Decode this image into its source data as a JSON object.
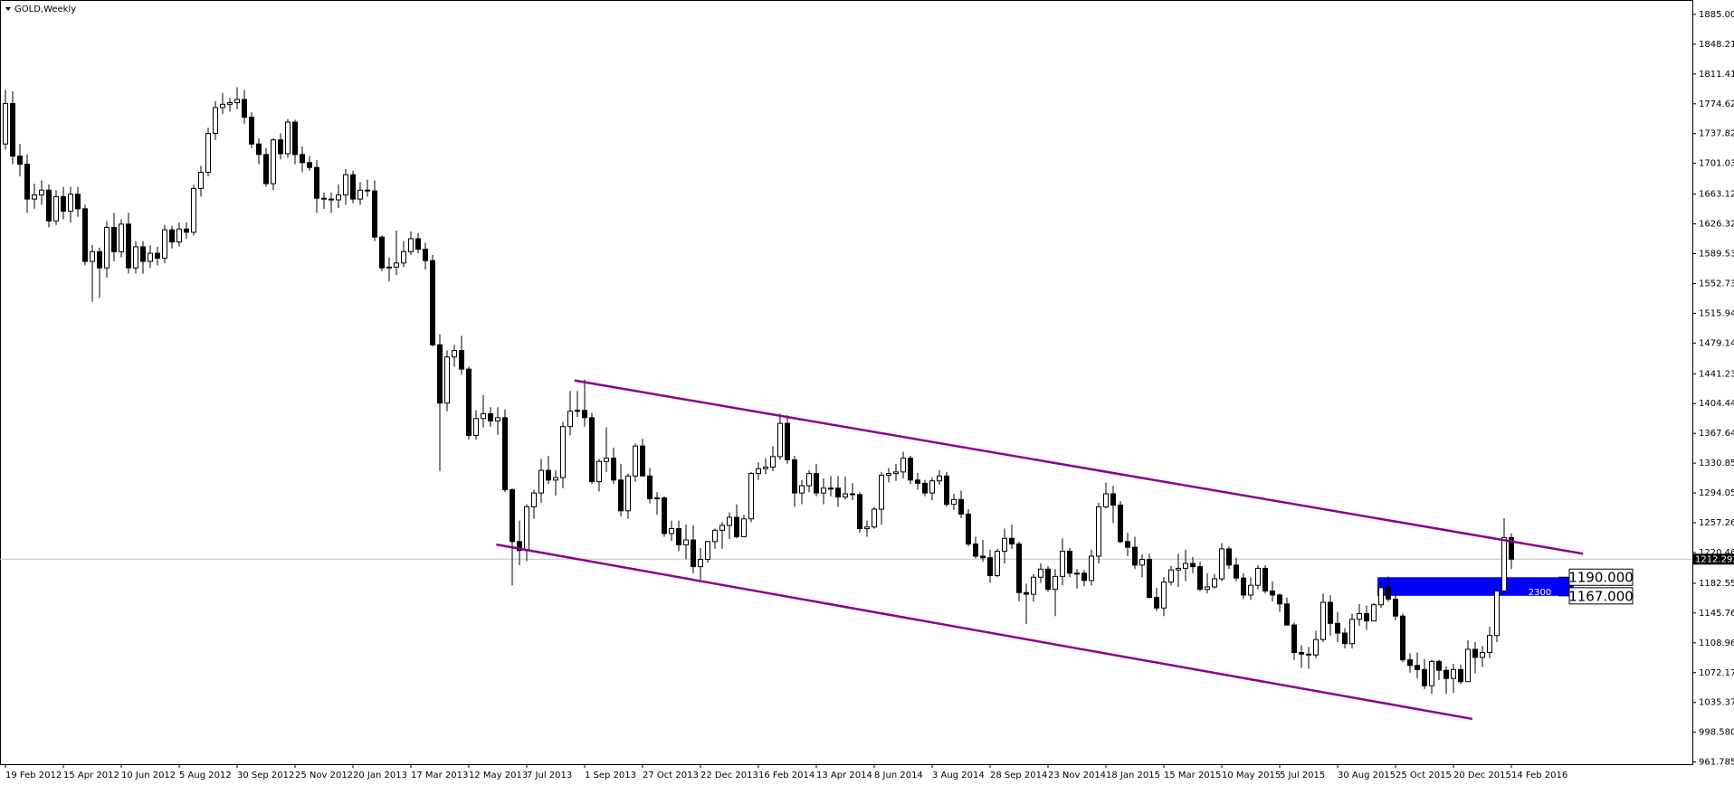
{
  "chart_data": {
    "type": "candlestick",
    "title": "GOLD,Weekly",
    "open": [
      1725,
      1775,
      1710,
      1700,
      1657,
      1662,
      1668,
      1630,
      1660,
      1642,
      1663,
      1645,
      1580,
      1592,
      1572,
      1622,
      1592,
      1626,
      1572,
      1598,
      1580,
      1590,
      1584,
      1619,
      1604,
      1620,
      1616,
      1670,
      1690,
      1738,
      1770,
      1774,
      1776,
      1780,
      1758,
      1725,
      1712,
      1676,
      1730,
      1713,
      1752,
      1712,
      1702,
      1696,
      1658,
      1657,
      1656,
      1662,
      1687,
      1657,
      1668,
      1667,
      1610,
      1572,
      1573,
      1578,
      1592,
      1608,
      1595,
      1581,
      1477,
      1405,
      1462,
      1470,
      1447,
      1365,
      1386,
      1392,
      1383,
      1387,
      1298,
      1234,
      1223,
      1277,
      1294,
      1322,
      1310,
      1313,
      1376,
      1395,
      1396,
      1387,
      1308,
      1333,
      1337,
      1310,
      1272,
      1315,
      1352,
      1315,
      1287,
      1288,
      1244,
      1250,
      1230,
      1236,
      1203,
      1212,
      1234,
      1248,
      1254,
      1264,
      1240,
      1262,
      1318,
      1324,
      1326,
      1339,
      1380,
      1335,
      1294,
      1303,
      1318,
      1294,
      1300,
      1300,
      1289,
      1293,
      1292,
      1250,
      1252,
      1274,
      1316,
      1318,
      1320,
      1337,
      1310,
      1306,
      1294,
      1309,
      1315,
      1280,
      1286,
      1268,
      1231,
      1216,
      1214,
      1192,
      1222,
      1238,
      1231,
      1171,
      1169,
      1190,
      1200,
      1175,
      1191,
      1222,
      1195,
      1195,
      1186,
      1216,
      1277,
      1293,
      1279,
      1234,
      1227,
      1205,
      1212,
      1165,
      1152,
      1184,
      1199,
      1201,
      1207,
      1203,
      1175,
      1178,
      1188,
      1225,
      1205,
      1189,
      1168,
      1180,
      1201,
      1173,
      1168,
      1157,
      1131,
      1097,
      1095,
      1094,
      1113,
      1159,
      1133,
      1121,
      1108,
      1138,
      1145,
      1136,
      1156,
      1177,
      1163,
      1142,
      1088,
      1081,
      1076,
      1056,
      1086,
      1075,
      1065,
      1076,
      1061,
      1101,
      1091,
      1097,
      1118,
      1173,
      1239
    ],
    "high": [
      1792,
      1790,
      1725,
      1712,
      1676,
      1680,
      1675,
      1668,
      1672,
      1672,
      1672,
      1650,
      1600,
      1597,
      1630,
      1640,
      1632,
      1640,
      1605,
      1605,
      1600,
      1598,
      1625,
      1624,
      1628,
      1628,
      1675,
      1698,
      1745,
      1778,
      1788,
      1782,
      1795,
      1792,
      1764,
      1732,
      1720,
      1732,
      1738,
      1756,
      1755,
      1722,
      1710,
      1705,
      1665,
      1665,
      1675,
      1694,
      1692,
      1678,
      1681,
      1680,
      1612,
      1585,
      1618,
      1605,
      1617,
      1615,
      1603,
      1588,
      1490,
      1470,
      1477,
      1488,
      1450,
      1396,
      1415,
      1400,
      1400,
      1397,
      1300,
      1260,
      1280,
      1298,
      1336,
      1340,
      1322,
      1382,
      1420,
      1420,
      1434,
      1393,
      1336,
      1375,
      1350,
      1330,
      1318,
      1355,
      1361,
      1325,
      1295,
      1290,
      1260,
      1260,
      1255,
      1254,
      1226,
      1235,
      1250,
      1258,
      1270,
      1280,
      1267,
      1320,
      1332,
      1337,
      1352,
      1392,
      1390,
      1340,
      1310,
      1322,
      1330,
      1312,
      1315,
      1315,
      1314,
      1306,
      1295,
      1260,
      1277,
      1320,
      1325,
      1330,
      1345,
      1340,
      1319,
      1310,
      1313,
      1322,
      1320,
      1293,
      1297,
      1274,
      1240,
      1236,
      1224,
      1225,
      1250,
      1255,
      1234,
      1182,
      1194,
      1207,
      1204,
      1200,
      1238,
      1226,
      1200,
      1199,
      1224,
      1282,
      1307,
      1303,
      1284,
      1245,
      1240,
      1218,
      1219,
      1177,
      1190,
      1204,
      1219,
      1224,
      1215,
      1209,
      1195,
      1194,
      1232,
      1228,
      1214,
      1195,
      1190,
      1205,
      1205,
      1185,
      1170,
      1165,
      1134,
      1106,
      1104,
      1124,
      1170,
      1168,
      1147,
      1127,
      1145,
      1157,
      1155,
      1158,
      1184,
      1191,
      1170,
      1145,
      1096,
      1097,
      1089,
      1088,
      1088,
      1080,
      1083,
      1082,
      1112,
      1110,
      1105,
      1129,
      1175,
      1263,
      1244
    ],
    "low": [
      1718,
      1700,
      1685,
      1640,
      1645,
      1650,
      1622,
      1625,
      1632,
      1628,
      1635,
      1575,
      1530,
      1535,
      1560,
      1580,
      1585,
      1565,
      1565,
      1565,
      1572,
      1575,
      1578,
      1596,
      1598,
      1608,
      1612,
      1660,
      1685,
      1730,
      1762,
      1765,
      1768,
      1750,
      1720,
      1700,
      1672,
      1668,
      1706,
      1708,
      1700,
      1690,
      1692,
      1640,
      1645,
      1640,
      1646,
      1650,
      1652,
      1650,
      1660,
      1605,
      1568,
      1555,
      1563,
      1573,
      1588,
      1590,
      1570,
      1475,
      1321,
      1395,
      1450,
      1440,
      1360,
      1360,
      1375,
      1376,
      1366,
      1295,
      1180,
      1205,
      1210,
      1262,
      1282,
      1305,
      1291,
      1300,
      1365,
      1388,
      1376,
      1305,
      1296,
      1320,
      1305,
      1265,
      1262,
      1308,
      1315,
      1281,
      1267,
      1240,
      1235,
      1222,
      1212,
      1195,
      1187,
      1208,
      1225,
      1225,
      1237,
      1238,
      1240,
      1258,
      1310,
      1317,
      1321,
      1335,
      1330,
      1277,
      1280,
      1295,
      1290,
      1280,
      1290,
      1277,
      1286,
      1285,
      1245,
      1240,
      1250,
      1255,
      1307,
      1309,
      1312,
      1305,
      1298,
      1290,
      1285,
      1304,
      1277,
      1273,
      1263,
      1228,
      1213,
      1209,
      1183,
      1190,
      1207,
      1225,
      1160,
      1132,
      1160,
      1183,
      1172,
      1142,
      1180,
      1190,
      1176,
      1179,
      1180,
      1207,
      1275,
      1257,
      1232,
      1216,
      1200,
      1190,
      1164,
      1148,
      1142,
      1180,
      1178,
      1185,
      1195,
      1173,
      1170,
      1176,
      1185,
      1200,
      1185,
      1163,
      1162,
      1175,
      1170,
      1160,
      1147,
      1130,
      1088,
      1078,
      1077,
      1090,
      1110,
      1118,
      1110,
      1102,
      1102,
      1130,
      1125,
      1136,
      1152,
      1160,
      1137,
      1085,
      1072,
      1065,
      1052,
      1046,
      1063,
      1046,
      1047,
      1058,
      1061,
      1071,
      1079,
      1090,
      1110,
      1170,
      1200
    ],
    "close": [
      1775,
      1710,
      1700,
      1657,
      1662,
      1668,
      1630,
      1660,
      1642,
      1663,
      1645,
      1580,
      1592,
      1572,
      1622,
      1592,
      1626,
      1572,
      1598,
      1580,
      1590,
      1584,
      1619,
      1604,
      1620,
      1616,
      1670,
      1690,
      1738,
      1770,
      1774,
      1776,
      1780,
      1758,
      1725,
      1712,
      1676,
      1730,
      1713,
      1752,
      1712,
      1702,
      1696,
      1658,
      1657,
      1656,
      1662,
      1687,
      1657,
      1668,
      1667,
      1610,
      1572,
      1573,
      1578,
      1592,
      1608,
      1595,
      1581,
      1477,
      1405,
      1462,
      1470,
      1447,
      1365,
      1386,
      1392,
      1383,
      1387,
      1298,
      1234,
      1223,
      1277,
      1294,
      1322,
      1310,
      1313,
      1376,
      1395,
      1396,
      1387,
      1308,
      1333,
      1337,
      1310,
      1272,
      1315,
      1352,
      1315,
      1287,
      1288,
      1244,
      1250,
      1230,
      1236,
      1203,
      1212,
      1234,
      1248,
      1254,
      1264,
      1240,
      1262,
      1318,
      1324,
      1326,
      1339,
      1380,
      1335,
      1294,
      1303,
      1318,
      1294,
      1300,
      1300,
      1289,
      1293,
      1292,
      1250,
      1252,
      1274,
      1316,
      1318,
      1320,
      1337,
      1310,
      1306,
      1294,
      1309,
      1315,
      1280,
      1286,
      1268,
      1231,
      1216,
      1214,
      1192,
      1222,
      1238,
      1231,
      1171,
      1169,
      1190,
      1200,
      1175,
      1191,
      1222,
      1195,
      1195,
      1186,
      1216,
      1277,
      1293,
      1279,
      1234,
      1227,
      1205,
      1212,
      1165,
      1152,
      1184,
      1199,
      1201,
      1207,
      1203,
      1175,
      1178,
      1188,
      1225,
      1205,
      1189,
      1168,
      1180,
      1201,
      1173,
      1168,
      1157,
      1131,
      1097,
      1095,
      1094,
      1113,
      1159,
      1133,
      1121,
      1108,
      1138,
      1145,
      1136,
      1156,
      1177,
      1163,
      1142,
      1088,
      1081,
      1076,
      1056,
      1086,
      1075,
      1065,
      1076,
      1061,
      1101,
      1091,
      1097,
      1118,
      1173,
      1239,
      1212.292
    ],
    "up_color": "#ffffff",
    "down_color": "#000000",
    "xlim": [
      -0.75,
      233
    ],
    "xticks": [
      {
        "value": 0,
        "label": "19 Feb 2012"
      },
      {
        "value": 8,
        "label": "15 Apr 2012"
      },
      {
        "value": 16,
        "label": "10 Jun 2012"
      },
      {
        "value": 24,
        "label": "5 Aug 2012"
      },
      {
        "value": 32,
        "label": "30 Sep 2012"
      },
      {
        "value": 40,
        "label": "25 Nov 2012"
      },
      {
        "value": 48,
        "label": "20 Jan 2013"
      },
      {
        "value": 56,
        "label": "17 Mar 2013"
      },
      {
        "value": 64,
        "label": "12 May 2013"
      },
      {
        "value": 72,
        "label": "7 Jul 2013"
      },
      {
        "value": 80,
        "label": "1 Sep 2013"
      },
      {
        "value": 88,
        "label": "27 Oct 2013"
      },
      {
        "value": 96,
        "label": "22 Dec 2013"
      },
      {
        "value": 104,
        "label": "16 Feb 2014"
      },
      {
        "value": 112,
        "label": "13 Apr 2014"
      },
      {
        "value": 120,
        "label": "8 Jun 2014"
      },
      {
        "value": 128,
        "label": "3 Aug 2014"
      },
      {
        "value": 136,
        "label": "28 Sep 2014"
      },
      {
        "value": 144,
        "label": "23 Nov 2014"
      },
      {
        "value": 152,
        "label": "18 Jan 2015"
      },
      {
        "value": 160,
        "label": "15 Mar 2015"
      },
      {
        "value": 168,
        "label": "10 May 2015"
      },
      {
        "value": 176,
        "label": "5 Jul 2015"
      },
      {
        "value": 184,
        "label": "30 Aug 2015"
      },
      {
        "value": 192,
        "label": "25 Oct 2015"
      },
      {
        "value": 200,
        "label": "20 Dec 2015"
      },
      {
        "value": 208,
        "label": "14 Feb 2016"
      }
    ],
    "ylim": [
      959.1,
      1902.8
    ],
    "yticks": [
      {
        "value": 1885,
        "label": "1885.000"
      },
      {
        "value": 1848.21,
        "label": "1848.210"
      },
      {
        "value": 1811.415,
        "label": "1811.415"
      },
      {
        "value": 1774.62,
        "label": "1774.620"
      },
      {
        "value": 1737.825,
        "label": "1737.825"
      },
      {
        "value": 1701.03,
        "label": "1701.030"
      },
      {
        "value": 1663.12,
        "label": "1663.120"
      },
      {
        "value": 1626.325,
        "label": "1626.325"
      },
      {
        "value": 1589.53,
        "label": "1589.530"
      },
      {
        "value": 1552.735,
        "label": "1552.735"
      },
      {
        "value": 1515.94,
        "label": "1515.940"
      },
      {
        "value": 1479.145,
        "label": "1479.145"
      },
      {
        "value": 1441.235,
        "label": "1441.235"
      },
      {
        "value": 1404.44,
        "label": "1404.440"
      },
      {
        "value": 1367.645,
        "label": "1367.645"
      },
      {
        "value": 1330.85,
        "label": "1330.850"
      },
      {
        "value": 1294.055,
        "label": "1294.055"
      },
      {
        "value": 1257.26,
        "label": "1257.260"
      },
      {
        "value": 1220.465,
        "label": "1220.465"
      },
      {
        "value": 1182.555,
        "label": "1182.555"
      },
      {
        "value": 1145.76,
        "label": "1145.760"
      },
      {
        "value": 1108.965,
        "label": "1108.965"
      },
      {
        "value": 1072.17,
        "label": "1072.170"
      },
      {
        "value": 1035.375,
        "label": "1035.375"
      },
      {
        "value": 998.58,
        "label": "998.580"
      },
      {
        "value": 961.785,
        "label": "961.785"
      }
    ],
    "current_price": 1212.292,
    "trendlines": [
      {
        "x": [
          78.6,
          217.9
        ],
        "y": [
          1433,
          1219
        ],
        "color": "#8b008b"
      },
      {
        "x": [
          67.8,
          202.6
        ],
        "y": [
          1230.3,
          1015
        ],
        "color": "#8b008b"
      }
    ],
    "levels": [
      {
        "value": 1190,
        "label": "1190.000"
      },
      {
        "value": 1167,
        "label": "1167.000"
      }
    ],
    "zone": {
      "x": [
        189.5,
        216.6
      ],
      "color": "#0000ff",
      "label": "2300"
    }
  }
}
